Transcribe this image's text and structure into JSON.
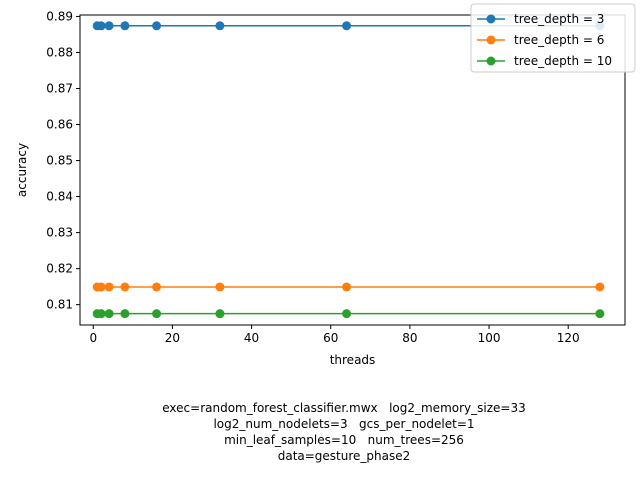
{
  "chart_data": {
    "type": "line",
    "xlabel": "threads",
    "ylabel": "accuracy",
    "xlim": [
      -3.35,
      134.35
    ],
    "ylim": [
      0.80435,
      0.8904
    ],
    "xticks": [
      0,
      20,
      40,
      60,
      80,
      100,
      120
    ],
    "yticks": [
      0.81,
      0.82,
      0.83,
      0.84,
      0.85,
      0.86,
      0.87,
      0.88,
      0.89
    ],
    "x": [
      1,
      2,
      4,
      8,
      16,
      32,
      64,
      128
    ],
    "series": [
      {
        "name": "tree_depth = 3",
        "color": "#1f77b4",
        "values": [
          0.8874,
          0.8874,
          0.8874,
          0.8874,
          0.8874,
          0.8874,
          0.8874,
          0.8874
        ]
      },
      {
        "name": "tree_depth = 6",
        "color": "#ff7f0e",
        "values": [
          0.8149,
          0.8149,
          0.8149,
          0.8149,
          0.8149,
          0.8149,
          0.8149,
          0.8149
        ]
      },
      {
        "name": "tree_depth = 10",
        "color": "#2ca02c",
        "values": [
          0.8075,
          0.8075,
          0.8075,
          0.8075,
          0.8075,
          0.8075,
          0.8075,
          0.8075
        ]
      }
    ],
    "legend_position": "top-right",
    "grid": false
  },
  "caption": {
    "line1": "exec=random_forest_classifier.mwx   log2_memory_size=33",
    "line2": "log2_num_nodelets=3   gcs_per_nodelet=1",
    "line3": "min_leaf_samples=10   num_trees=256",
    "line4": "data=gesture_phase2"
  }
}
